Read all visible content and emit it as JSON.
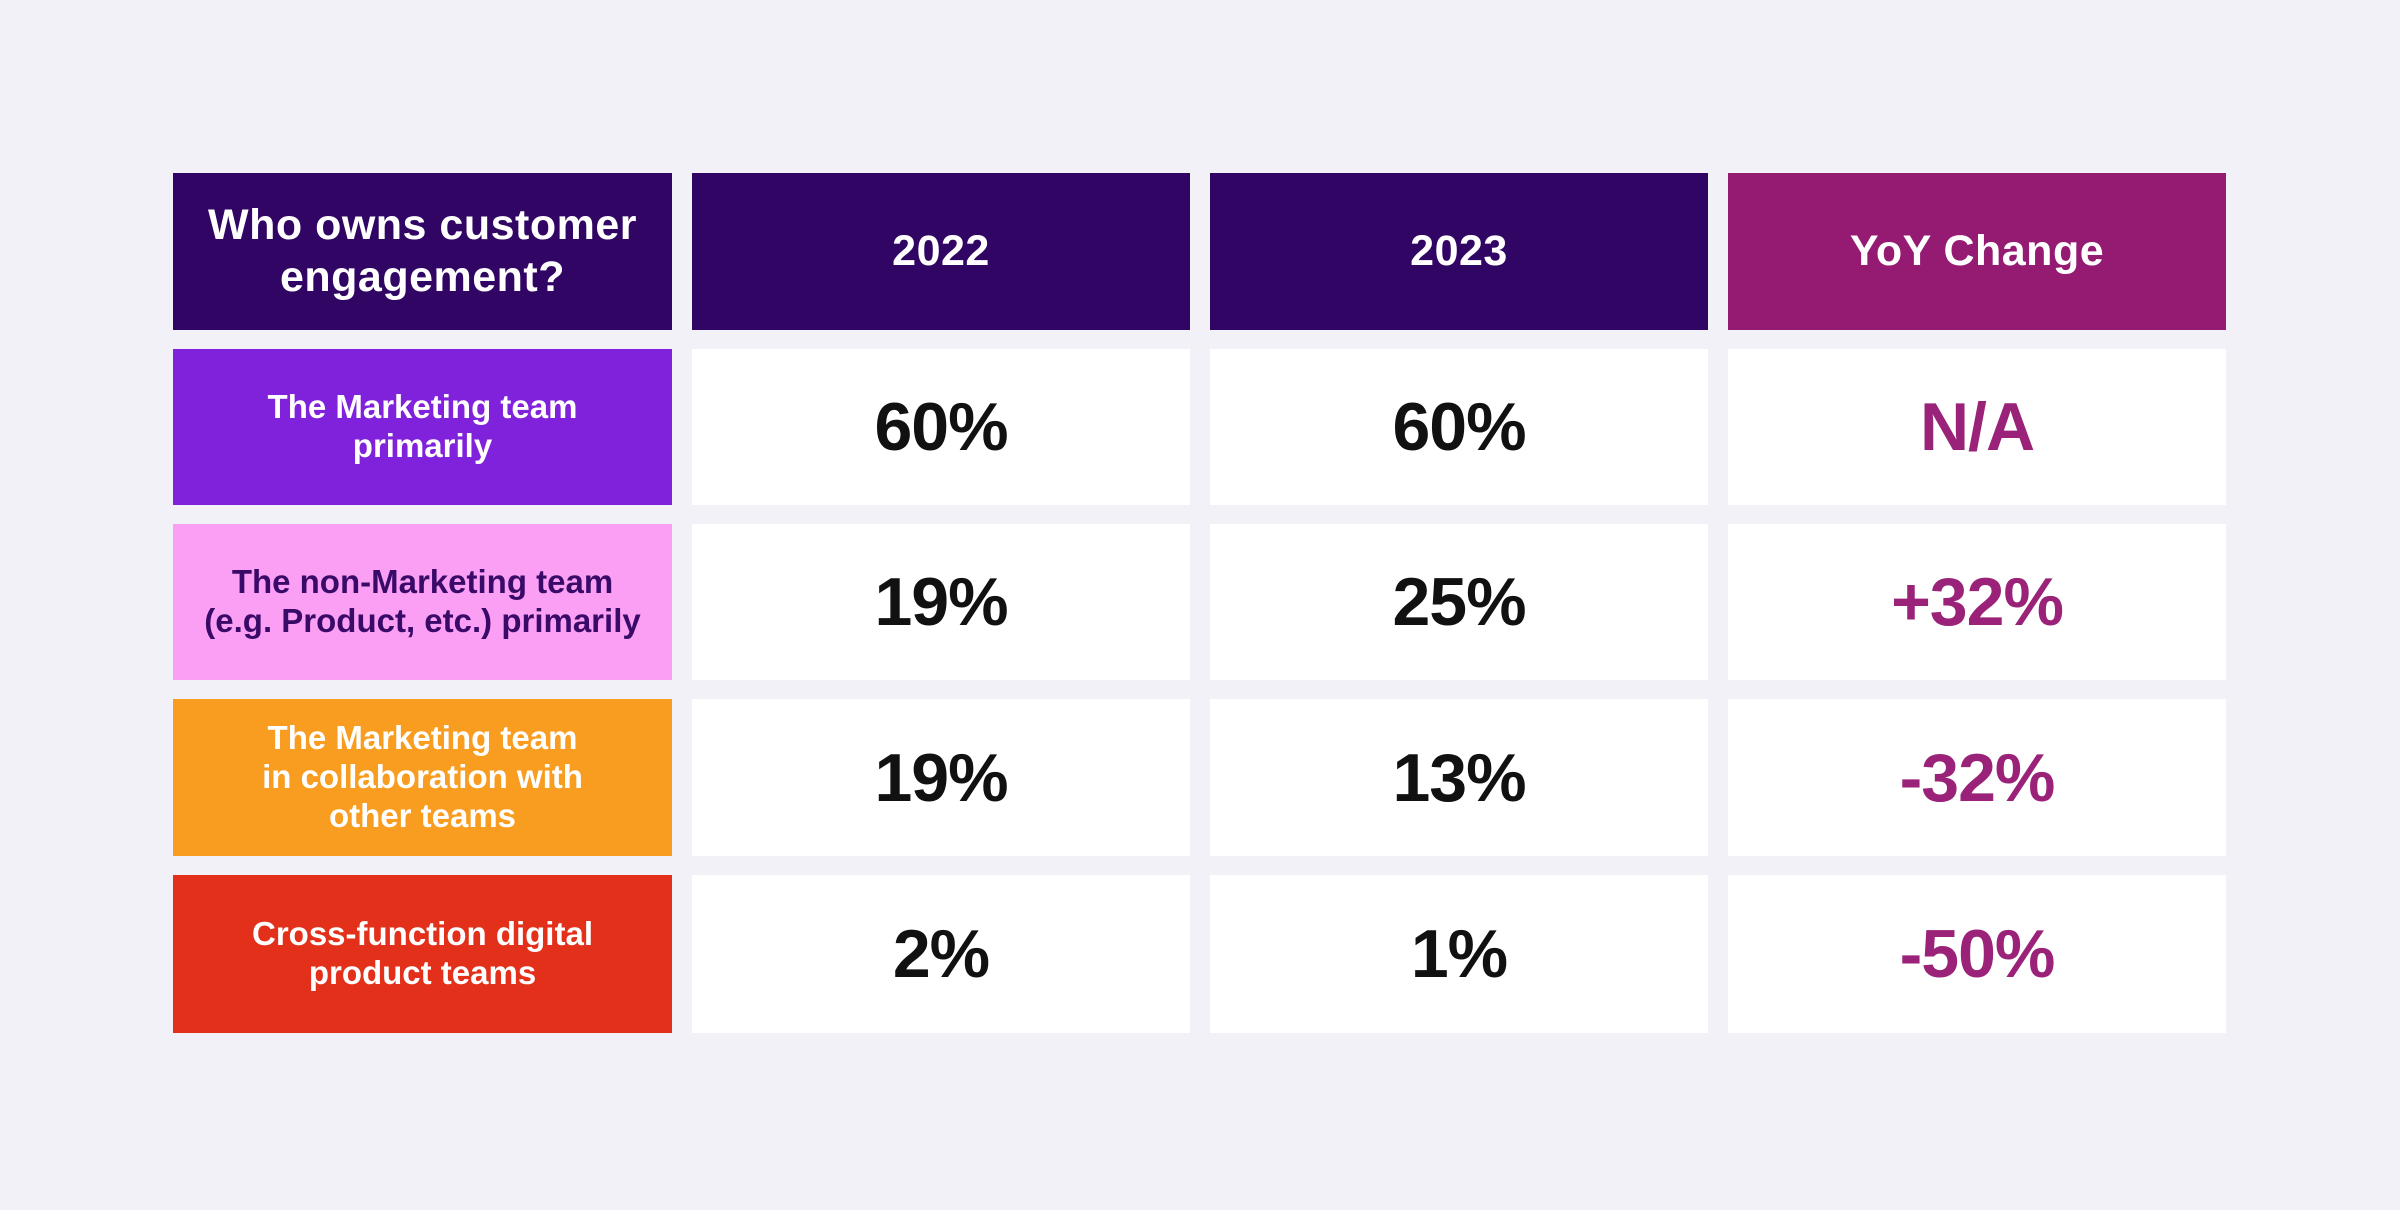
{
  "colors": {
    "page_background": "#F2F1F8",
    "header_purple": "#310564",
    "header_magenta": "#941A72",
    "row_violet": "#8021DB",
    "row_pink": "#FA9FF3",
    "row_pink_text": "#3A0A69",
    "row_orange": "#F89D20",
    "row_red": "#E2301B",
    "value_cell_background": "#FFFFFF",
    "value_text": "#111111",
    "yoy_value_text": "#9A2278",
    "header_text": "#FFFFFF"
  },
  "table": {
    "header": {
      "question": "Who owns customer engagement?",
      "question_lines": [
        "Who owns customer",
        "engagement?"
      ],
      "col_2022": "2022",
      "col_2023": "2023",
      "col_yoy": "YoY Change"
    },
    "rows": [
      {
        "label": "The Marketing team primarily",
        "lines": [
          "The Marketing team",
          "primarily"
        ],
        "v2022": "60%",
        "v2023": "60%",
        "yoy": "N/A"
      },
      {
        "label": "The non-Marketing team (e.g. Product, etc.) primarily",
        "lines": [
          "The non-Marketing team",
          "(e.g. Product, etc.) primarily"
        ],
        "v2022": "19%",
        "v2023": "25%",
        "yoy": "+32%"
      },
      {
        "label": "The Marketing team in collaboration with other teams",
        "lines": [
          "The Marketing team",
          "in collaboration with",
          "other teams"
        ],
        "v2022": "19%",
        "v2023": "13%",
        "yoy": "-32%"
      },
      {
        "label": "Cross-function digital product teams",
        "lines": [
          "Cross-function digital",
          "product teams"
        ],
        "v2022": "2%",
        "v2023": "1%",
        "yoy": "-50%"
      }
    ]
  },
  "chart_data": {
    "type": "table",
    "title": "Who owns customer engagement?",
    "categories": [
      "The Marketing team primarily",
      "The non-Marketing team (e.g. Product, etc.) primarily",
      "The Marketing team in collaboration with other teams",
      "Cross-function digital product teams"
    ],
    "series": [
      {
        "name": "2022",
        "unit": "%",
        "values": [
          60,
          19,
          19,
          2
        ]
      },
      {
        "name": "2023",
        "unit": "%",
        "values": [
          60,
          25,
          13,
          1
        ]
      },
      {
        "name": "YoY Change",
        "unit": "%",
        "values": [
          null,
          32,
          -32,
          -50
        ],
        "labels": [
          "N/A",
          "+32%",
          "-32%",
          "-50%"
        ]
      }
    ]
  }
}
